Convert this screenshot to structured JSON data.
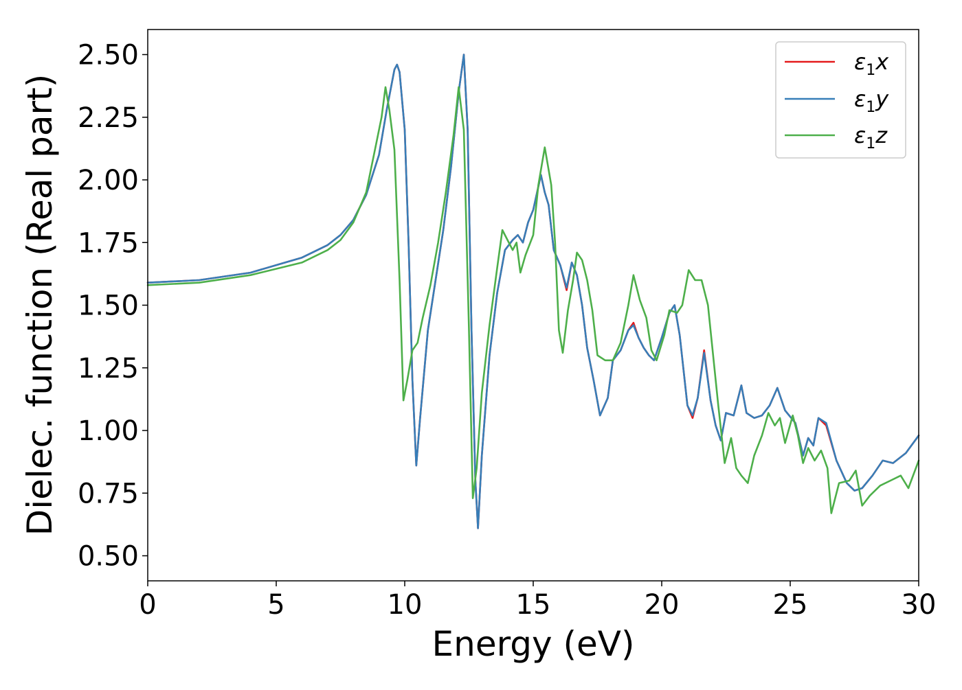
{
  "chart_data": {
    "type": "line",
    "title": "",
    "xlabel": "Energy (eV)",
    "ylabel": "Dielec. function (Real part)",
    "xlim": [
      0,
      30
    ],
    "ylim": [
      0.4,
      2.6
    ],
    "xticks": [
      0,
      5,
      10,
      15,
      20,
      25,
      30
    ],
    "xtick_labels": [
      "0",
      "5",
      "10",
      "15",
      "20",
      "25",
      "30"
    ],
    "yticks": [
      0.5,
      0.75,
      1.0,
      1.25,
      1.5,
      1.75,
      2.0,
      2.25,
      2.5
    ],
    "ytick_labels": [
      "0.50",
      "0.75",
      "1.00",
      "1.25",
      "1.50",
      "1.75",
      "2.00",
      "2.25",
      "2.50"
    ],
    "grid": false,
    "legend": {
      "position": "top-right",
      "entries": [
        {
          "symbol": "ε",
          "sub": "1",
          "var": "x"
        },
        {
          "symbol": "ε",
          "sub": "1",
          "var": "y"
        },
        {
          "symbol": "ε",
          "sub": "1",
          "var": "z"
        }
      ]
    },
    "series": [
      {
        "legend_index": 0,
        "color": "#e41a1c",
        "points": [
          [
            0,
            1.59
          ],
          [
            2,
            1.6
          ],
          [
            4,
            1.63
          ],
          [
            6,
            1.69
          ],
          [
            7,
            1.74
          ],
          [
            7.5,
            1.78
          ],
          [
            8,
            1.84
          ],
          [
            8.5,
            1.94
          ],
          [
            9,
            2.1
          ],
          [
            9.3,
            2.28
          ],
          [
            9.6,
            2.44
          ],
          [
            9.7,
            2.46
          ],
          [
            9.8,
            2.43
          ],
          [
            10,
            2.2
          ],
          [
            10.15,
            1.75
          ],
          [
            10.3,
            1.2
          ],
          [
            10.45,
            0.86
          ],
          [
            10.6,
            1.05
          ],
          [
            10.9,
            1.4
          ],
          [
            11.2,
            1.6
          ],
          [
            11.5,
            1.8
          ],
          [
            11.8,
            2.05
          ],
          [
            12.1,
            2.35
          ],
          [
            12.3,
            2.5
          ],
          [
            12.45,
            2.2
          ],
          [
            12.6,
            1.4
          ],
          [
            12.75,
            0.8
          ],
          [
            12.85,
            0.61
          ],
          [
            13,
            0.9
          ],
          [
            13.3,
            1.3
          ],
          [
            13.6,
            1.55
          ],
          [
            13.9,
            1.72
          ],
          [
            14.2,
            1.76
          ],
          [
            14.4,
            1.78
          ],
          [
            14.6,
            1.75
          ],
          [
            14.8,
            1.83
          ],
          [
            15,
            1.88
          ],
          [
            15.15,
            1.95
          ],
          [
            15.3,
            2.02
          ],
          [
            15.45,
            1.95
          ],
          [
            15.6,
            1.9
          ],
          [
            15.8,
            1.72
          ],
          [
            16.05,
            1.66
          ],
          [
            16.3,
            1.56
          ],
          [
            16.5,
            1.67
          ],
          [
            16.7,
            1.62
          ],
          [
            16.9,
            1.5
          ],
          [
            17.1,
            1.33
          ],
          [
            17.35,
            1.2
          ],
          [
            17.6,
            1.06
          ],
          [
            17.9,
            1.13
          ],
          [
            18.1,
            1.28
          ],
          [
            18.4,
            1.32
          ],
          [
            18.7,
            1.4
          ],
          [
            18.9,
            1.43
          ],
          [
            19.1,
            1.37
          ],
          [
            19.3,
            1.33
          ],
          [
            19.5,
            1.3
          ],
          [
            19.7,
            1.28
          ],
          [
            20,
            1.37
          ],
          [
            20.3,
            1.47
          ],
          [
            20.5,
            1.5
          ],
          [
            20.7,
            1.38
          ],
          [
            21,
            1.1
          ],
          [
            21.2,
            1.05
          ],
          [
            21.4,
            1.13
          ],
          [
            21.65,
            1.32
          ],
          [
            21.9,
            1.12
          ],
          [
            22.1,
            1.02
          ],
          [
            22.3,
            0.96
          ],
          [
            22.5,
            1.07
          ],
          [
            22.8,
            1.06
          ],
          [
            23.1,
            1.18
          ],
          [
            23.3,
            1.07
          ],
          [
            23.6,
            1.05
          ],
          [
            23.9,
            1.06
          ],
          [
            24.2,
            1.1
          ],
          [
            24.5,
            1.17
          ],
          [
            24.8,
            1.08
          ],
          [
            25.2,
            1.03
          ],
          [
            25.5,
            0.9
          ],
          [
            25.7,
            0.97
          ],
          [
            25.9,
            0.94
          ],
          [
            26.1,
            1.05
          ],
          [
            26.4,
            1.02
          ],
          [
            26.8,
            0.88
          ],
          [
            27.2,
            0.79
          ],
          [
            27.5,
            0.76
          ],
          [
            27.8,
            0.77
          ],
          [
            28.2,
            0.82
          ],
          [
            28.6,
            0.88
          ],
          [
            29,
            0.87
          ],
          [
            29.5,
            0.91
          ],
          [
            30,
            0.98
          ]
        ]
      },
      {
        "legend_index": 1,
        "color": "#377eb8",
        "points": [
          [
            0,
            1.59
          ],
          [
            2,
            1.6
          ],
          [
            4,
            1.63
          ],
          [
            6,
            1.69
          ],
          [
            7,
            1.74
          ],
          [
            7.5,
            1.78
          ],
          [
            8,
            1.84
          ],
          [
            8.5,
            1.94
          ],
          [
            9,
            2.1
          ],
          [
            9.3,
            2.28
          ],
          [
            9.6,
            2.44
          ],
          [
            9.7,
            2.46
          ],
          [
            9.8,
            2.43
          ],
          [
            10,
            2.2
          ],
          [
            10.15,
            1.75
          ],
          [
            10.3,
            1.2
          ],
          [
            10.45,
            0.86
          ],
          [
            10.6,
            1.05
          ],
          [
            10.9,
            1.4
          ],
          [
            11.2,
            1.6
          ],
          [
            11.5,
            1.8
          ],
          [
            11.8,
            2.05
          ],
          [
            12.1,
            2.35
          ],
          [
            12.3,
            2.5
          ],
          [
            12.45,
            2.2
          ],
          [
            12.6,
            1.4
          ],
          [
            12.75,
            0.8
          ],
          [
            12.85,
            0.61
          ],
          [
            13,
            0.9
          ],
          [
            13.3,
            1.3
          ],
          [
            13.6,
            1.55
          ],
          [
            13.9,
            1.72
          ],
          [
            14.2,
            1.76
          ],
          [
            14.4,
            1.78
          ],
          [
            14.6,
            1.75
          ],
          [
            14.8,
            1.83
          ],
          [
            15,
            1.88
          ],
          [
            15.15,
            1.95
          ],
          [
            15.3,
            2.02
          ],
          [
            15.45,
            1.95
          ],
          [
            15.6,
            1.9
          ],
          [
            15.8,
            1.72
          ],
          [
            16.05,
            1.66
          ],
          [
            16.3,
            1.57
          ],
          [
            16.5,
            1.67
          ],
          [
            16.7,
            1.62
          ],
          [
            16.9,
            1.5
          ],
          [
            17.1,
            1.33
          ],
          [
            17.35,
            1.2
          ],
          [
            17.6,
            1.06
          ],
          [
            17.9,
            1.13
          ],
          [
            18.1,
            1.28
          ],
          [
            18.4,
            1.32
          ],
          [
            18.7,
            1.4
          ],
          [
            18.9,
            1.42
          ],
          [
            19.1,
            1.37
          ],
          [
            19.3,
            1.33
          ],
          [
            19.5,
            1.3
          ],
          [
            19.7,
            1.28
          ],
          [
            20,
            1.37
          ],
          [
            20.3,
            1.47
          ],
          [
            20.5,
            1.5
          ],
          [
            20.7,
            1.38
          ],
          [
            21,
            1.1
          ],
          [
            21.2,
            1.06
          ],
          [
            21.4,
            1.13
          ],
          [
            21.65,
            1.31
          ],
          [
            21.9,
            1.12
          ],
          [
            22.1,
            1.02
          ],
          [
            22.3,
            0.96
          ],
          [
            22.5,
            1.07
          ],
          [
            22.8,
            1.06
          ],
          [
            23.1,
            1.18
          ],
          [
            23.3,
            1.07
          ],
          [
            23.6,
            1.05
          ],
          [
            23.9,
            1.06
          ],
          [
            24.2,
            1.1
          ],
          [
            24.5,
            1.17
          ],
          [
            24.8,
            1.08
          ],
          [
            25.2,
            1.03
          ],
          [
            25.5,
            0.9
          ],
          [
            25.7,
            0.97
          ],
          [
            25.9,
            0.94
          ],
          [
            26.1,
            1.05
          ],
          [
            26.4,
            1.03
          ],
          [
            26.8,
            0.88
          ],
          [
            27.2,
            0.79
          ],
          [
            27.5,
            0.76
          ],
          [
            27.8,
            0.77
          ],
          [
            28.2,
            0.82
          ],
          [
            28.6,
            0.88
          ],
          [
            29,
            0.87
          ],
          [
            29.5,
            0.91
          ],
          [
            30,
            0.98
          ]
        ]
      },
      {
        "legend_index": 2,
        "color": "#4daf4a",
        "points": [
          [
            0,
            1.58
          ],
          [
            2,
            1.59
          ],
          [
            4,
            1.62
          ],
          [
            6,
            1.67
          ],
          [
            7,
            1.72
          ],
          [
            7.5,
            1.76
          ],
          [
            8,
            1.83
          ],
          [
            8.5,
            1.95
          ],
          [
            8.9,
            2.15
          ],
          [
            9.1,
            2.25
          ],
          [
            9.25,
            2.37
          ],
          [
            9.4,
            2.28
          ],
          [
            9.6,
            2.12
          ],
          [
            9.8,
            1.6
          ],
          [
            9.95,
            1.12
          ],
          [
            10.1,
            1.2
          ],
          [
            10.3,
            1.32
          ],
          [
            10.5,
            1.35
          ],
          [
            10.7,
            1.45
          ],
          [
            11,
            1.58
          ],
          [
            11.3,
            1.75
          ],
          [
            11.6,
            1.95
          ],
          [
            11.9,
            2.18
          ],
          [
            12.1,
            2.37
          ],
          [
            12.3,
            2.2
          ],
          [
            12.5,
            1.4
          ],
          [
            12.65,
            0.73
          ],
          [
            12.8,
            0.85
          ],
          [
            13,
            1.15
          ],
          [
            13.3,
            1.42
          ],
          [
            13.6,
            1.65
          ],
          [
            13.8,
            1.8
          ],
          [
            14,
            1.76
          ],
          [
            14.2,
            1.72
          ],
          [
            14.35,
            1.75
          ],
          [
            14.5,
            1.63
          ],
          [
            14.7,
            1.7
          ],
          [
            15,
            1.78
          ],
          [
            15.2,
            1.98
          ],
          [
            15.45,
            2.13
          ],
          [
            15.7,
            1.98
          ],
          [
            15.85,
            1.75
          ],
          [
            16,
            1.4
          ],
          [
            16.15,
            1.31
          ],
          [
            16.35,
            1.48
          ],
          [
            16.55,
            1.6
          ],
          [
            16.7,
            1.71
          ],
          [
            16.9,
            1.68
          ],
          [
            17.1,
            1.6
          ],
          [
            17.3,
            1.48
          ],
          [
            17.5,
            1.3
          ],
          [
            17.8,
            1.28
          ],
          [
            18.1,
            1.28
          ],
          [
            18.4,
            1.35
          ],
          [
            18.7,
            1.5
          ],
          [
            18.9,
            1.62
          ],
          [
            19.15,
            1.52
          ],
          [
            19.4,
            1.45
          ],
          [
            19.6,
            1.32
          ],
          [
            19.8,
            1.28
          ],
          [
            20.1,
            1.38
          ],
          [
            20.3,
            1.48
          ],
          [
            20.6,
            1.47
          ],
          [
            20.8,
            1.5
          ],
          [
            21.05,
            1.64
          ],
          [
            21.3,
            1.6
          ],
          [
            21.55,
            1.6
          ],
          [
            21.8,
            1.5
          ],
          [
            22.0,
            1.3
          ],
          [
            22.2,
            1.1
          ],
          [
            22.45,
            0.87
          ],
          [
            22.7,
            0.97
          ],
          [
            22.9,
            0.85
          ],
          [
            23.1,
            0.82
          ],
          [
            23.35,
            0.79
          ],
          [
            23.6,
            0.9
          ],
          [
            23.9,
            0.98
          ],
          [
            24.15,
            1.07
          ],
          [
            24.4,
            1.02
          ],
          [
            24.6,
            1.05
          ],
          [
            24.8,
            0.95
          ],
          [
            25.1,
            1.06
          ],
          [
            25.3,
            0.98
          ],
          [
            25.5,
            0.87
          ],
          [
            25.7,
            0.93
          ],
          [
            25.95,
            0.88
          ],
          [
            26.2,
            0.92
          ],
          [
            26.45,
            0.85
          ],
          [
            26.6,
            0.67
          ],
          [
            26.9,
            0.79
          ],
          [
            27.3,
            0.8
          ],
          [
            27.55,
            0.84
          ],
          [
            27.8,
            0.7
          ],
          [
            28.1,
            0.74
          ],
          [
            28.5,
            0.78
          ],
          [
            28.9,
            0.8
          ],
          [
            29.3,
            0.82
          ],
          [
            29.6,
            0.77
          ],
          [
            30,
            0.88
          ]
        ]
      }
    ]
  }
}
